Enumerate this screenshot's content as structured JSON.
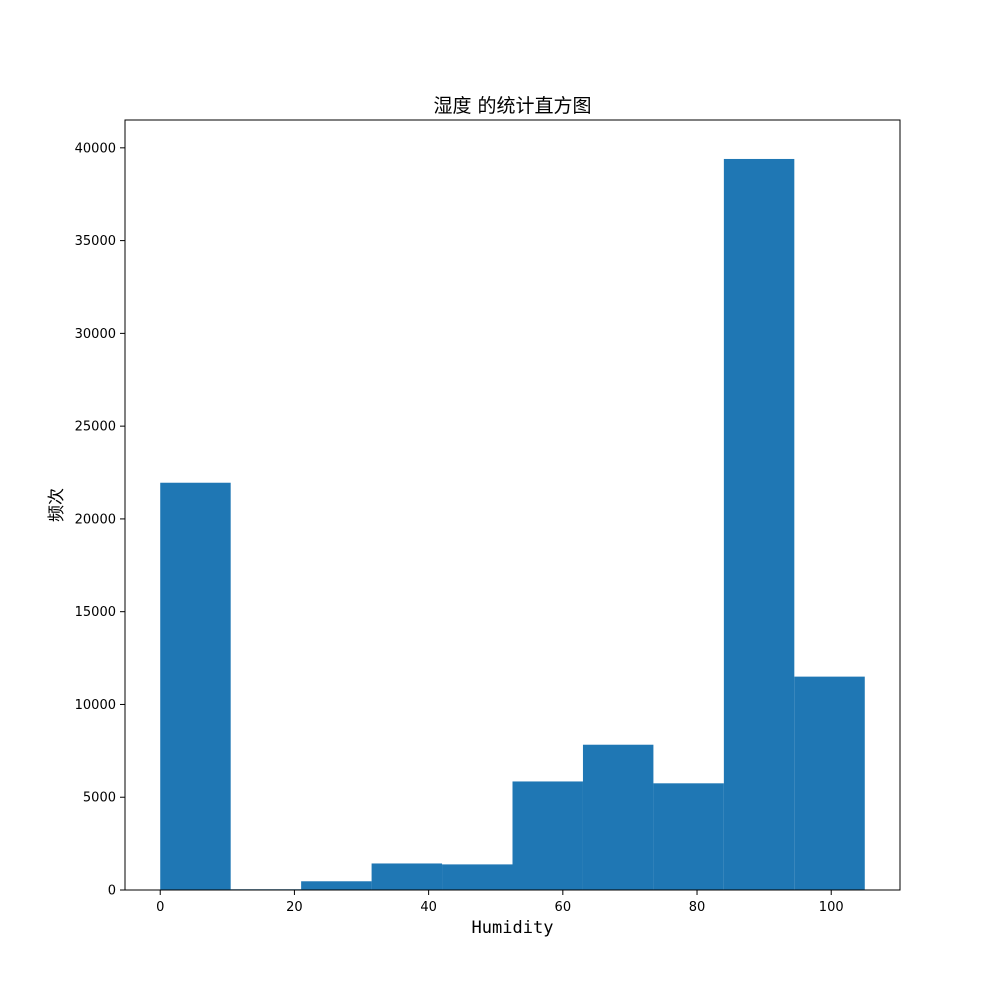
{
  "chart_data": {
    "type": "bar",
    "title": "湿度 的统计直方图",
    "xlabel": "Humidity",
    "ylabel": "频次",
    "xlim": [
      -5.25,
      110.25
    ],
    "ylim": [
      0,
      41500
    ],
    "x_ticks": [
      0,
      20,
      40,
      60,
      80,
      100
    ],
    "y_ticks": [
      0,
      5000,
      10000,
      15000,
      20000,
      25000,
      30000,
      35000,
      40000
    ],
    "bin_edges": [
      0,
      10.5,
      21,
      31.5,
      42,
      52.5,
      63,
      73.5,
      84,
      94.5,
      105
    ],
    "values": [
      21950,
      40,
      470,
      1430,
      1380,
      5850,
      7830,
      5750,
      39400,
      11500
    ],
    "grid": false,
    "bar_color": "#1f77b4"
  }
}
